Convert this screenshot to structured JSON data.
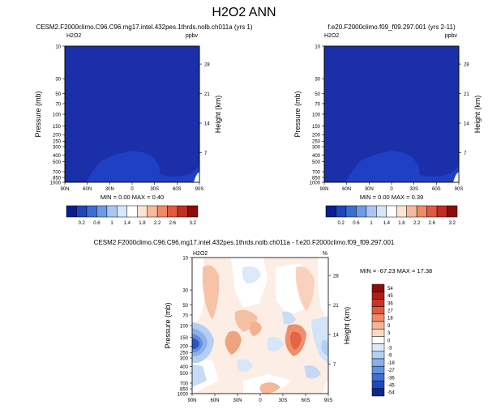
{
  "page": {
    "title": "H2O2 ANN",
    "title_fontsize_hint": "large"
  },
  "panels": {
    "left": {
      "title": "CESM2.F2000climo.C96.C96.mg17.intel.432pes.1thrds.nolb.ch011a (yrs 1)",
      "var": "H2O2",
      "units": "ppbv",
      "minmax": "MIN =  0.00   MAX =  0.40"
    },
    "right": {
      "title": "f.e20.F2000climo.f09_f09.297.001 (yrs 2-11)",
      "var": "H2O2",
      "units": "ppbv",
      "minmax": "MIN =  0.00   MAX =  0.39"
    },
    "diff": {
      "title": "CESM2.F2000climo.C96.C96.mg17.intel.432pes.1thrds.nolb.ch011a - f.e20.F2000climo.f09_f09.297.001",
      "var": "H2O2",
      "units": "%",
      "minmax": "MIN = -67.23   MAX =  17.38"
    }
  },
  "chart_data": [
    {
      "type": "heatmap",
      "name": "left",
      "xlabel": "",
      "ylabel": "Pressure (mb)",
      "y2label": "Height (km)",
      "x_ticks": [
        "90N",
        "60N",
        "30N",
        "0",
        "30S",
        "60S",
        "90S"
      ],
      "y_ticks": [
        "10",
        "30",
        "50",
        "70",
        "100",
        "150",
        "200",
        "250",
        "300",
        "400",
        "500",
        "700",
        "850",
        "1000"
      ],
      "y2_ticks": [
        "28",
        "21",
        "14",
        "7"
      ],
      "colorbar": [
        "0.2",
        "0.6",
        "1",
        "1.4",
        "1.8",
        "2.2",
        "2.6",
        "3.2"
      ]
    },
    {
      "type": "heatmap",
      "name": "right",
      "xlabel": "",
      "ylabel": "Pressure (mb)",
      "y2label": "Height (km)",
      "x_ticks": [
        "90N",
        "60N",
        "30N",
        "0",
        "30S",
        "60S",
        "90S"
      ],
      "y_ticks": [
        "10",
        "30",
        "50",
        "70",
        "100",
        "150",
        "200",
        "250",
        "300",
        "400",
        "500",
        "700",
        "850",
        "1000"
      ],
      "y2_ticks": [
        "28",
        "21",
        "14",
        "7"
      ],
      "colorbar": [
        "0.2",
        "0.6",
        "1",
        "1.4",
        "1.8",
        "2.2",
        "2.6",
        "3.2"
      ]
    },
    {
      "type": "heatmap",
      "name": "diff",
      "xlabel": "",
      "ylabel": "Pressure (mb)",
      "y2label": "Height (km)",
      "x_ticks": [
        "90N",
        "60N",
        "30N",
        "0",
        "30S",
        "60S",
        "90S"
      ],
      "y_ticks": [
        "10",
        "30",
        "50",
        "70",
        "100",
        "150",
        "200",
        "250",
        "300",
        "400",
        "500",
        "700",
        "850",
        "1000"
      ],
      "y2_ticks": [
        "28",
        "21",
        "14",
        "7"
      ],
      "colorbar": [
        "54",
        "45",
        "36",
        "27",
        "18",
        "9",
        "3",
        "0",
        "-3",
        "-9",
        "-18",
        "-27",
        "-36",
        "-45",
        "-54"
      ]
    }
  ],
  "colors": {
    "field_fill": "#1a2fa8",
    "field_low": "#1f3cc0",
    "seq_scale": [
      "#0a1f8f",
      "#1f45b8",
      "#3a6fd2",
      "#6d9be6",
      "#a9c6f2",
      "#d6e7fa",
      "#ffffff",
      "#fde4d2",
      "#f7b99a",
      "#ee8a66",
      "#df5a3e",
      "#c22e22",
      "#8c0c0c"
    ],
    "div_scale": [
      "#8c0c0c",
      "#b11d17",
      "#cd3428",
      "#e15a41",
      "#f08a69",
      "#f7b598",
      "#fcd9c6",
      "#ffffff",
      "#dbe9f9",
      "#b4cff4",
      "#8cb0ea",
      "#6590df",
      "#3f6dd0",
      "#2149b8",
      "#0a278d"
    ]
  }
}
